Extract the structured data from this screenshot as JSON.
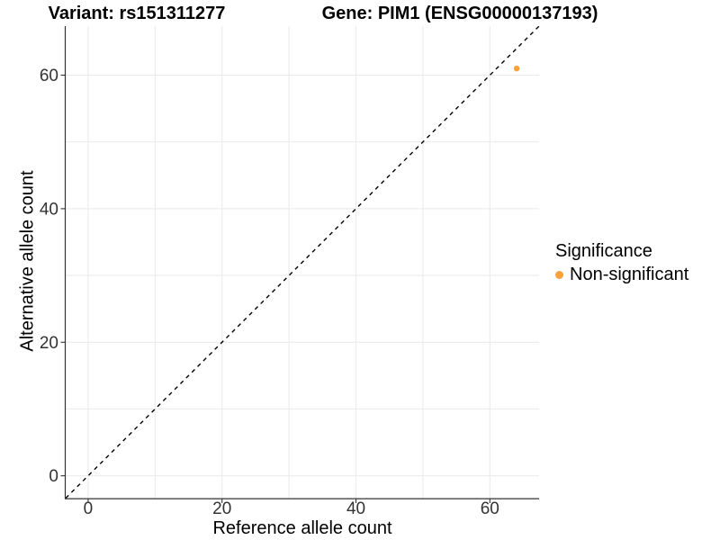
{
  "titles": {
    "variant": "Variant: rs151311277",
    "gene": "Gene: PIM1 (ENSG00000137193)"
  },
  "chart_data": {
    "type": "scatter",
    "title": "Variant: rs151311277   Gene: PIM1 (ENSG00000137193)",
    "xlabel": "Reference allele count",
    "ylabel": "Alternative allele count",
    "xlim": [
      -3.35,
      67.35
    ],
    "ylim": [
      -3.35,
      67.35
    ],
    "xticks": [
      0,
      20,
      40,
      60
    ],
    "yticks": [
      0,
      20,
      40,
      60
    ],
    "gridlines_x": [
      0,
      10,
      20,
      30,
      40,
      50,
      60
    ],
    "gridlines_y": [
      0,
      10,
      20,
      30,
      40,
      50,
      60
    ],
    "grid_on": true,
    "reference_line": {
      "style": "dashed",
      "slope": 1,
      "intercept": 0,
      "color": "#000000"
    },
    "series": [
      {
        "name": "Non-significant",
        "color": "#F9A13A",
        "points": [
          {
            "x": 64,
            "y": 61
          }
        ]
      }
    ],
    "legend": {
      "title": "Significance",
      "position": "right",
      "items": [
        {
          "label": "Non-significant",
          "color": "#F9A13A"
        }
      ]
    }
  },
  "colors": {
    "background": "#ffffff",
    "grid": "#ebebeb",
    "axis_line": "#333333",
    "tick_mark": "#333333",
    "tick_label": "#333333",
    "title_text": "#000000",
    "point": "#F9A13A"
  }
}
